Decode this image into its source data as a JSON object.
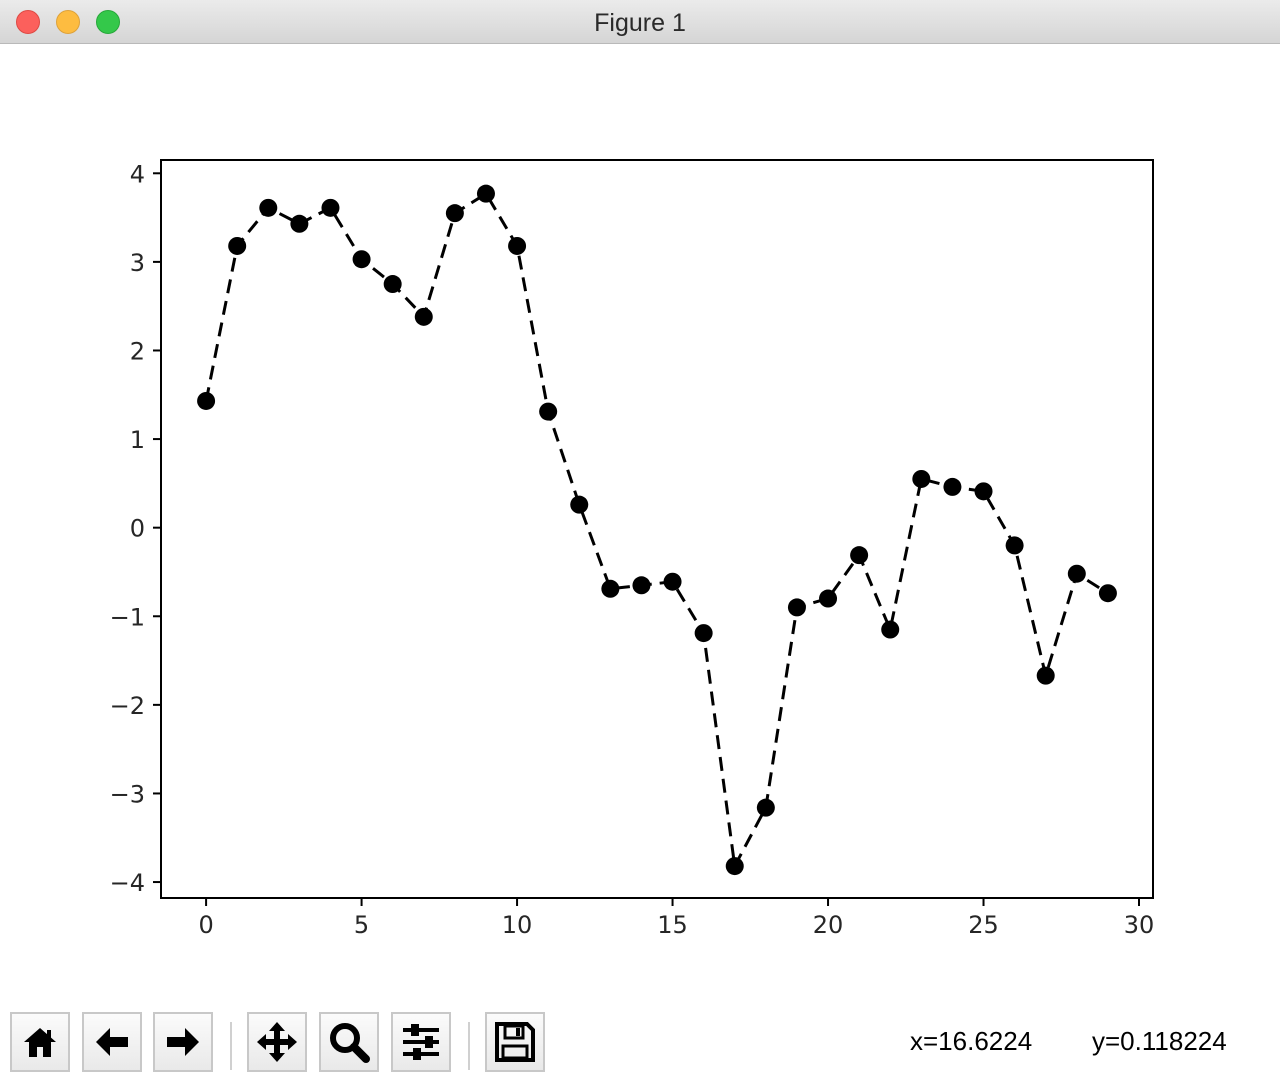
{
  "window": {
    "title": "Figure 1"
  },
  "toolbar": {
    "buttons": [
      {
        "icon": "home-icon"
      },
      {
        "icon": "back-arrow-icon"
      },
      {
        "icon": "forward-arrow-icon"
      },
      {
        "icon": "pan-move-icon"
      },
      {
        "icon": "zoom-magnifier-icon"
      },
      {
        "icon": "subplots-sliders-icon"
      },
      {
        "icon": "save-floppy-icon"
      }
    ]
  },
  "status": {
    "x_readout": "x=16.6224",
    "y_readout": "y=0.118224"
  },
  "chart_data": {
    "type": "line",
    "line_style": "dashed",
    "marker": "circle",
    "color": "#000000",
    "grid": false,
    "x": [
      0,
      1,
      2,
      3,
      4,
      5,
      6,
      7,
      8,
      9,
      10,
      11,
      12,
      13,
      14,
      15,
      16,
      17,
      18,
      19,
      20,
      21,
      22,
      23,
      24,
      25,
      26,
      27,
      28,
      29
    ],
    "y": [
      1.43,
      3.18,
      3.61,
      3.43,
      3.61,
      3.03,
      2.75,
      2.38,
      3.55,
      3.77,
      3.18,
      1.31,
      0.26,
      -0.69,
      -0.65,
      -0.61,
      -1.19,
      -3.82,
      -3.16,
      -0.9,
      -0.8,
      -0.31,
      -1.15,
      0.55,
      0.46,
      0.41,
      -0.2,
      -1.67,
      -0.52,
      -0.74
    ],
    "xlim": [
      -1.45,
      30.45
    ],
    "ylim": [
      -4.18,
      4.15
    ],
    "xticks": [
      0,
      5,
      10,
      15,
      20,
      25,
      30
    ],
    "xtick_labels": [
      "0",
      "5",
      "10",
      "15",
      "20",
      "25",
      "30"
    ],
    "yticks": [
      4,
      3,
      2,
      1,
      0,
      -1,
      -2,
      -3,
      -4
    ],
    "ytick_labels": [
      "4",
      "3",
      "2",
      "1",
      "0",
      "−1",
      "−2",
      "−3",
      "−4"
    ]
  }
}
